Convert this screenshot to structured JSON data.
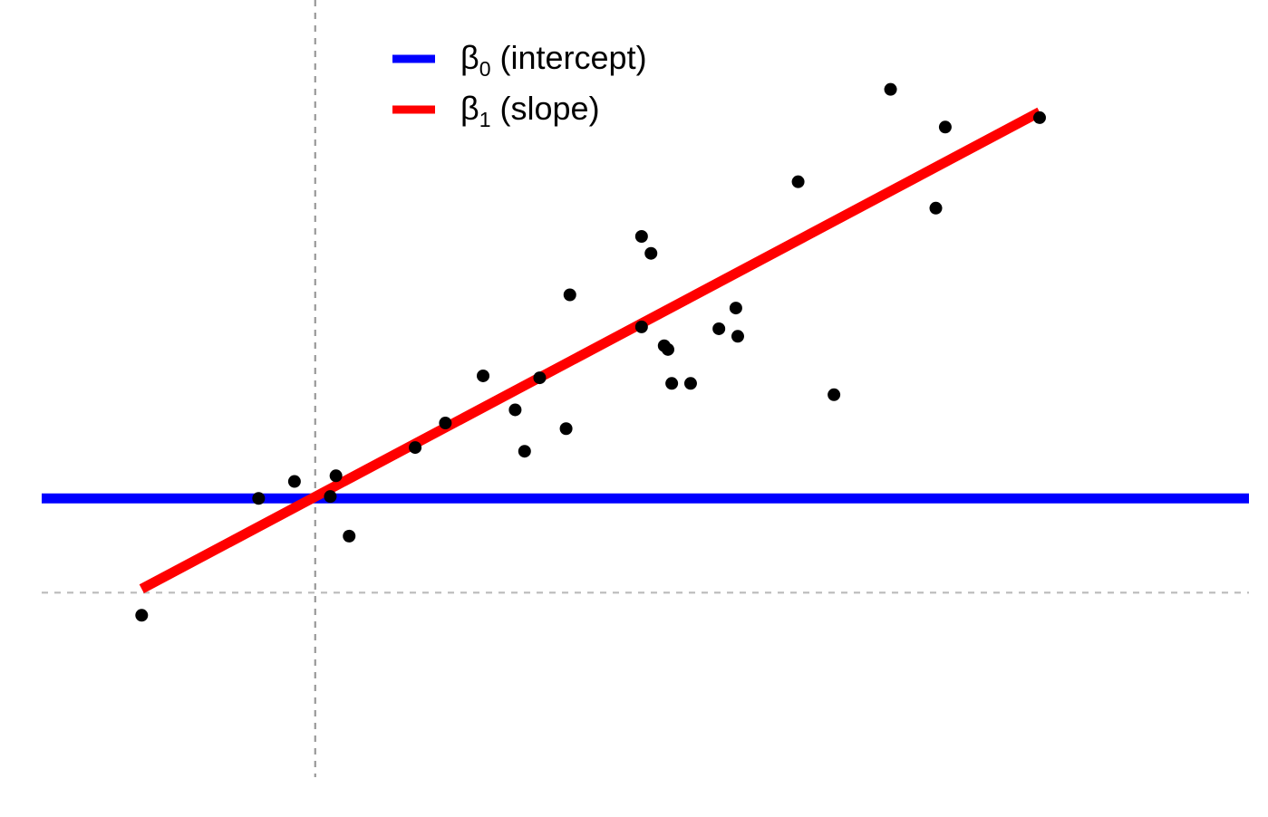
{
  "chart_data": {
    "type": "scatter",
    "title": "",
    "xlabel": "",
    "ylabel": "",
    "xlim": [
      -1.45,
      4.95
    ],
    "ylim": [
      -1.45,
      2.5
    ],
    "grid": false,
    "axes_visible": false,
    "reference_lines": [
      {
        "orientation": "vertical",
        "value": 0,
        "style": "dashed",
        "color": "#999999"
      },
      {
        "orientation": "horizontal",
        "value": -0.5,
        "style": "dashed",
        "color": "#bbbbbb"
      }
    ],
    "points": [
      {
        "x": -0.92,
        "y": -0.62
      },
      {
        "x": -0.3,
        "y": 0
      },
      {
        "x": -0.11,
        "y": 0.09
      },
      {
        "x": 0.08,
        "y": 0.01
      },
      {
        "x": 0.11,
        "y": 0.12
      },
      {
        "x": 0.18,
        "y": -0.2
      },
      {
        "x": 0.53,
        "y": 0.27
      },
      {
        "x": 0.69,
        "y": 0.4
      },
      {
        "x": 0.89,
        "y": 0.65
      },
      {
        "x": 1.06,
        "y": 0.47
      },
      {
        "x": 1.11,
        "y": 0.25
      },
      {
        "x": 1.19,
        "y": 0.64
      },
      {
        "x": 1.33,
        "y": 0.37
      },
      {
        "x": 1.35,
        "y": 1.08
      },
      {
        "x": 1.73,
        "y": 0.91
      },
      {
        "x": 1.73,
        "y": 1.39
      },
      {
        "x": 1.78,
        "y": 1.3
      },
      {
        "x": 1.85,
        "y": 0.81
      },
      {
        "x": 1.87,
        "y": 0.79
      },
      {
        "x": 1.89,
        "y": 0.61
      },
      {
        "x": 1.99,
        "y": 0.61
      },
      {
        "x": 2.14,
        "y": 0.9
      },
      {
        "x": 2.23,
        "y": 1.01
      },
      {
        "x": 2.24,
        "y": 0.86
      },
      {
        "x": 2.56,
        "y": 1.68
      },
      {
        "x": 2.75,
        "y": 0.55
      },
      {
        "x": 3.05,
        "y": 2.17
      },
      {
        "x": 3.29,
        "y": 1.54
      },
      {
        "x": 3.34,
        "y": 1.97
      },
      {
        "x": 3.84,
        "y": 2.02
      }
    ],
    "series": [
      {
        "name": "β0 (intercept)",
        "kind": "line",
        "color": "#0000ff",
        "x": [
          -1.45,
          4.95
        ],
        "y": [
          0,
          0
        ]
      },
      {
        "name": "β1 (slope)",
        "kind": "line",
        "color": "#ff0000",
        "x": [
          -0.92,
          3.84
        ],
        "y": [
          -0.48,
          2.05
        ]
      }
    ],
    "legend": {
      "position": "top",
      "entries": [
        {
          "symbol": "β",
          "subscript": "0",
          "label": " (intercept)",
          "color": "#0000ff"
        },
        {
          "symbol": "β",
          "subscript": "1",
          "label": " (slope)",
          "color": "#ff0000"
        }
      ]
    }
  }
}
